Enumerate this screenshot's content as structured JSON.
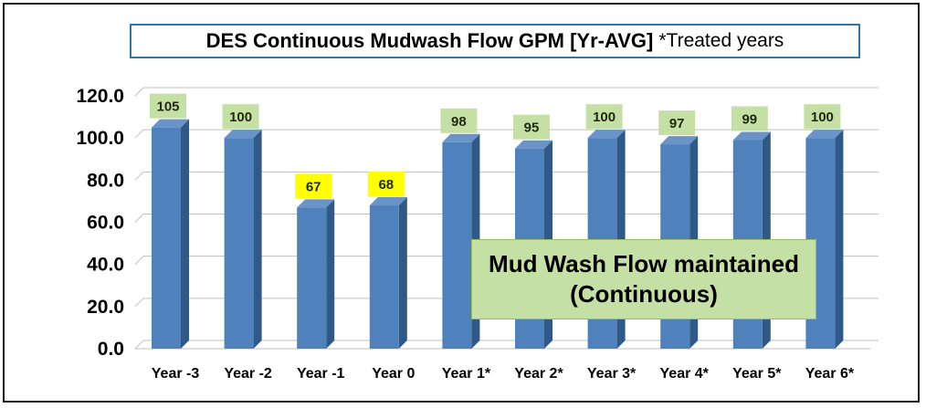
{
  "chart_data": {
    "type": "bar",
    "title": "DES Continuous Mudwash Flow GPM [Yr-AVG]",
    "subtitle": "*Treated years",
    "categories": [
      "Year -3",
      "Year -2",
      "Year -1",
      "Year 0",
      "Year 1*",
      "Year 2*",
      "Year 3*",
      "Year 4*",
      "Year 5*",
      "Year 6*"
    ],
    "values": [
      105,
      100,
      67,
      68,
      98,
      95,
      100,
      97,
      99,
      100
    ],
    "data_labels": [
      "105",
      "100",
      "67",
      "68",
      "98",
      "95",
      "100",
      "97",
      "99",
      "100"
    ],
    "y_ticks": [
      "0.0",
      "20.0",
      "40.0",
      "60.0",
      "80.0",
      "100.0",
      "120.0"
    ],
    "ylim": [
      0,
      120
    ],
    "grid": true,
    "legend": "none",
    "bar_color": "#4f81bd",
    "label_color_green": "#c5e0a5",
    "label_color_yellow": "#ffff00",
    "highlighted_label_indices": [
      2,
      3
    ],
    "annotation": {
      "line1": "Mud Wash Flow maintained",
      "line2": "(Continuous)"
    }
  }
}
